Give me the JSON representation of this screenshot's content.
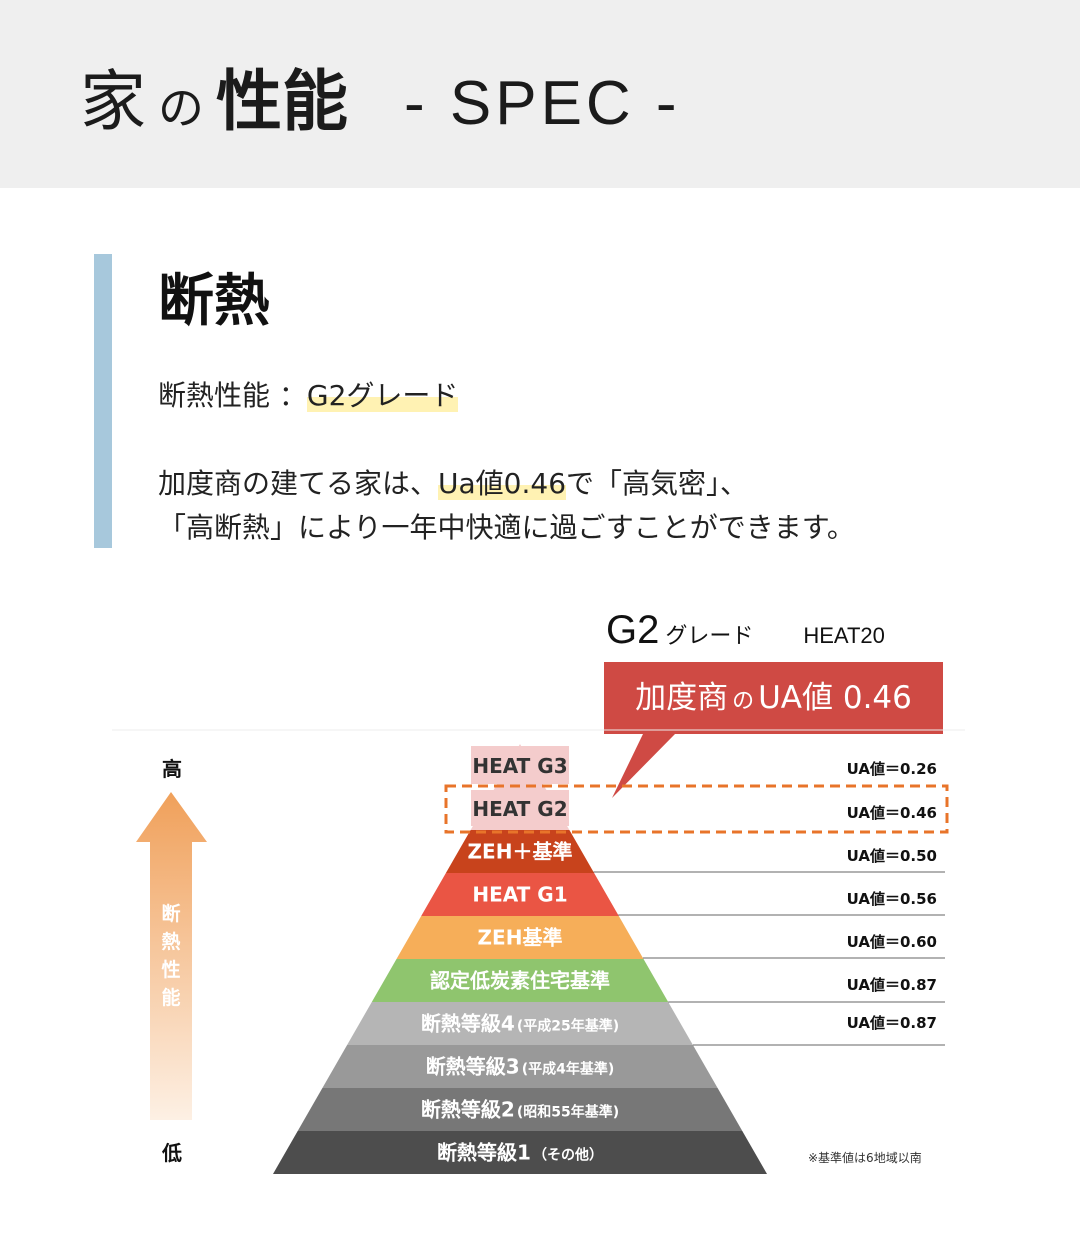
{
  "header": {
    "title_ie": "家",
    "title_no": "の",
    "title_seino": "性能",
    "title_spec": "- SPEC -"
  },
  "section": {
    "title": "断熱",
    "spec_label": "断熱性能 ：",
    "spec_value": "G2グレード",
    "desc_part1": "加度商の建てる家は、",
    "desc_highlight": "Ua値0.46",
    "desc_part2": "で「高気密」、",
    "desc_line2": "「高断熱」により一年中快適に過ごすことができます。"
  },
  "callout": {
    "grade_big": "G2",
    "grade_small": "グレード",
    "heat": "HEAT20",
    "box_company": "加度商",
    "box_no": "の",
    "box_value": "UA値 0.46",
    "box_color": "#cf4a44"
  },
  "diagram": {
    "axis_high": "高",
    "axis_low": "低",
    "axis_caption": [
      "断",
      "熱",
      "性",
      "能"
    ],
    "note": "※基準値は6地域以南",
    "highlight_color": "#e8742a",
    "tiers": [
      {
        "label": "HEAT G3",
        "ua": "UA値＝0.26",
        "color": "#f4cccc"
      },
      {
        "label": "HEAT G2",
        "ua": "UA値＝0.46",
        "color": "#f4cccc"
      },
      {
        "label": "ZEH＋基準",
        "ua": "UA値＝0.50",
        "color": "#c8431c"
      },
      {
        "label": "HEAT G1",
        "ua": "UA値＝0.56",
        "color": "#ea5544"
      },
      {
        "label": "ZEH基準",
        "ua": "UA値＝0.60",
        "color": "#f6ae59"
      },
      {
        "label": "認定低炭素住宅基準",
        "ua": "UA値＝0.87",
        "color": "#8fc56e"
      },
      {
        "label": "断熱等級4",
        "sub": "(平成25年基準)",
        "ua": "UA値＝0.87",
        "color": "#b5b5b5"
      },
      {
        "label": "断熱等級3",
        "sub": "(平成4年基準)",
        "ua": "",
        "color": "#999999"
      },
      {
        "label": "断熱等級2",
        "sub": "(昭和55年基準)",
        "ua": "",
        "color": "#777777"
      },
      {
        "label": "断熱等級1",
        "sub": "（その他）",
        "ua": "",
        "color": "#4d4d4d"
      }
    ]
  }
}
